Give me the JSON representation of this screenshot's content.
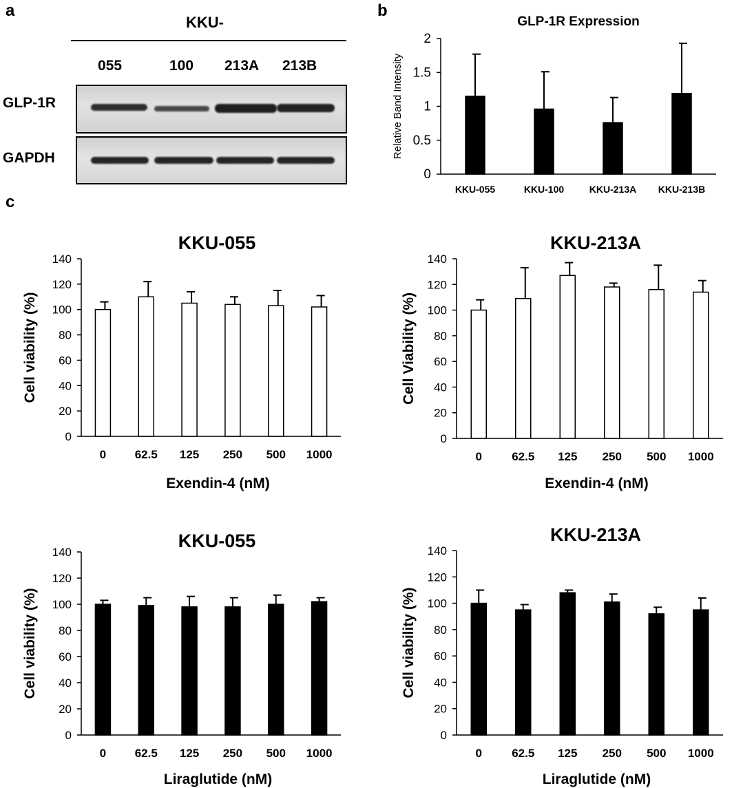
{
  "panel_letters": {
    "a": "a",
    "b": "b",
    "c": "c"
  },
  "blot": {
    "group_label": "KKU-",
    "lanes": [
      "055",
      "100",
      "213A",
      "213B"
    ],
    "rows": [
      "GLP-1R",
      "GAPDH"
    ]
  },
  "colors": {
    "black": "#000000",
    "white": "#ffffff",
    "blot_bg": "#d8d8d8",
    "band": "#2a2a2a"
  },
  "chart_data": [
    {
      "id": "b",
      "type": "bar",
      "title": "GLP-1R Expression",
      "xlabel": "",
      "ylabel": "Relative Band Intensity",
      "categories": [
        "KKU-055",
        "KKU-100",
        "KKU-213A",
        "KKU-213B"
      ],
      "series": [
        {
          "values": [
            1.15,
            0.96,
            0.76,
            1.19
          ],
          "errors": [
            0.62,
            0.55,
            0.37,
            0.74
          ],
          "fill": "#000000"
        }
      ],
      "ylim": [
        0,
        2
      ],
      "yticks": [
        0,
        0.5,
        1,
        1.5,
        2
      ],
      "ytick_labels": [
        "0",
        "0.5",
        "1",
        "1.5",
        "2"
      ],
      "grid": false
    },
    {
      "id": "c1",
      "type": "bar",
      "title": "KKU-055",
      "xlabel": "Exendin-4 (nM)",
      "ylabel": "Cell viability (%)",
      "categories": [
        "0",
        "62.5",
        "125",
        "250",
        "500",
        "1000"
      ],
      "series": [
        {
          "values": [
            100,
            110,
            105,
            104,
            103,
            102
          ],
          "errors": [
            6,
            12,
            9,
            6,
            12,
            9
          ],
          "fill": "#ffffff"
        }
      ],
      "ylim": [
        0,
        140
      ],
      "yticks": [
        0,
        20,
        40,
        60,
        80,
        100,
        120,
        140
      ],
      "ytick_labels": [
        "0",
        "20",
        "40",
        "60",
        "80",
        "100",
        "120",
        "140"
      ],
      "grid": false
    },
    {
      "id": "c2",
      "type": "bar",
      "title": "KKU-213A",
      "xlabel": "Exendin-4 (nM)",
      "ylabel": "Cell Viability (%)",
      "categories": [
        "0",
        "62.5",
        "125",
        "250",
        "500",
        "1000"
      ],
      "series": [
        {
          "values": [
            100,
            109,
            127,
            118,
            116,
            114
          ],
          "errors": [
            8,
            24,
            10,
            3,
            19,
            9
          ],
          "fill": "#ffffff"
        }
      ],
      "ylim": [
        0,
        140
      ],
      "yticks": [
        0,
        20,
        40,
        60,
        80,
        100,
        120,
        140
      ],
      "ytick_labels": [
        "0",
        "20",
        "40",
        "60",
        "80",
        "100",
        "120",
        "140"
      ],
      "grid": false
    },
    {
      "id": "c3",
      "type": "bar",
      "title": "KKU-055",
      "xlabel": "Liraglutide (nM)",
      "ylabel": "Cell viability (%)",
      "categories": [
        "0",
        "62.5",
        "125",
        "250",
        "500",
        "1000"
      ],
      "series": [
        {
          "values": [
            100,
            99,
            98,
            98,
            100,
            102
          ],
          "errors": [
            3,
            6,
            8,
            7,
            7,
            3
          ],
          "fill": "#000000"
        }
      ],
      "ylim": [
        0,
        140
      ],
      "yticks": [
        0,
        20,
        40,
        60,
        80,
        100,
        120,
        140
      ],
      "ytick_labels": [
        "0",
        "20",
        "40",
        "60",
        "80",
        "100",
        "120",
        "140"
      ],
      "grid": false
    },
    {
      "id": "c4",
      "type": "bar",
      "title": "KKU-213A",
      "xlabel": "Liraglutide (nM)",
      "ylabel": "Cell viability (%)",
      "categories": [
        "0",
        "62.5",
        "125",
        "250",
        "500",
        "1000"
      ],
      "series": [
        {
          "values": [
            100,
            95,
            108,
            101,
            92,
            95
          ],
          "errors": [
            10,
            4,
            2,
            6,
            5,
            9
          ],
          "fill": "#000000"
        }
      ],
      "ylim": [
        0,
        140
      ],
      "yticks": [
        0,
        20,
        40,
        60,
        80,
        100,
        120,
        140
      ],
      "ytick_labels": [
        "0",
        "20",
        "40",
        "60",
        "80",
        "100",
        "120",
        "140"
      ],
      "grid": false
    }
  ]
}
